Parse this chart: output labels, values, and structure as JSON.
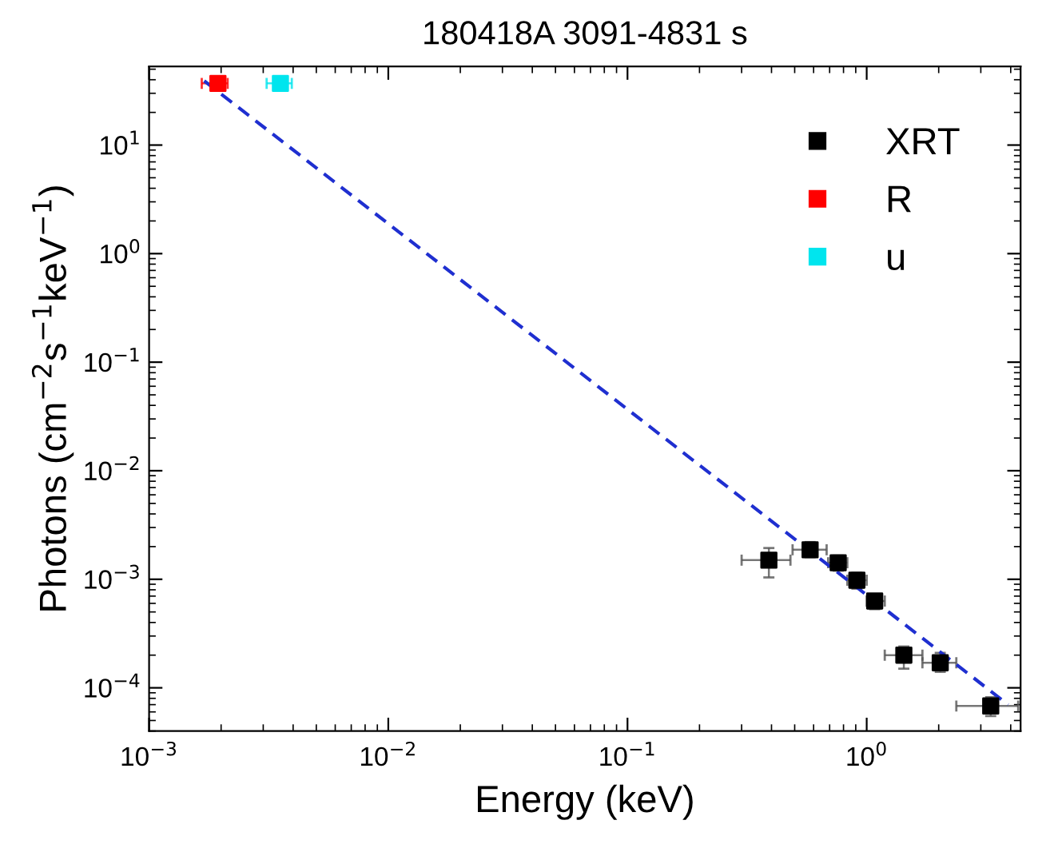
{
  "chart_data": {
    "type": "scatter",
    "title": "180418A 3091-4831 s",
    "xlabel": "Energy (keV)",
    "ylabel": "Photons (cm$^{−2}$s$^{−1}$keV$^{−1}$)",
    "log": "xy",
    "xlim": [
      0.001,
      4.4
    ],
    "ylim": [
      4e-05,
      53
    ],
    "xticks": [
      {
        "value": 0.001,
        "label": "10$^{−3}$"
      },
      {
        "value": 0.01,
        "label": "10$^{−2}$"
      },
      {
        "value": 0.1,
        "label": "10$^{−1}$"
      },
      {
        "value": 1,
        "label": "10$^{0}$"
      }
    ],
    "yticks": [
      {
        "value": 0.0001,
        "label": "10$^{−4}$"
      },
      {
        "value": 0.001,
        "label": "10$^{−3}$"
      },
      {
        "value": 0.01,
        "label": "10$^{−2}$"
      },
      {
        "value": 0.1,
        "label": "10$^{−1}$"
      },
      {
        "value": 1,
        "label": "10$^{0}$"
      },
      {
        "value": 10,
        "label": "10$^{1}$"
      }
    ],
    "marker": "square",
    "legend": "top right",
    "grid": false,
    "series": [
      {
        "type": "line",
        "marker": "none",
        "line_style": "dashed",
        "color": "#1f2fd0",
        "x": [
          0.0017,
          3.9
        ],
        "values": [
          39,
          7e-05
        ]
      },
      {
        "name": "XRT",
        "color": "#000000",
        "x": [
          0.39,
          0.58,
          0.76,
          0.91,
          1.08,
          1.43,
          2.03,
          3.3
        ],
        "values": [
          0.0015,
          0.00187,
          0.00142,
          0.00098,
          0.00063,
          0.0002,
          0.00017,
          6.8e-05
        ],
        "errors": [
          [
            0.00104,
            0.00194
          ],
          [
            0.0016,
            0.0022
          ],
          [
            0.0012,
            0.00165
          ],
          [
            0.00082,
            0.00115
          ],
          [
            0.00053,
            0.00073
          ],
          [
            0.00015,
            0.00024
          ],
          [
            0.00014,
            0.00021
          ],
          [
            5.5e-05,
            8.2e-05
          ]
        ],
        "xerrors": [
          [
            0.3,
            0.48
          ],
          [
            0.49,
            0.68
          ],
          [
            0.69,
            0.83
          ],
          [
            0.83,
            1.0
          ],
          [
            1.0,
            1.19
          ],
          [
            1.19,
            1.71
          ],
          [
            1.71,
            2.37
          ],
          [
            2.37,
            4.3
          ]
        ]
      },
      {
        "name": "R",
        "color": "#ff0000",
        "x": [
          0.00194
        ],
        "values": [
          37
        ],
        "xerrors": [
          [
            0.00166,
            0.00213
          ]
        ]
      },
      {
        "name": "u",
        "color": "#00e5ee",
        "x": [
          0.00354
        ],
        "values": [
          37
        ],
        "xerrors": [
          [
            0.0031,
            0.00395
          ]
        ]
      }
    ]
  }
}
